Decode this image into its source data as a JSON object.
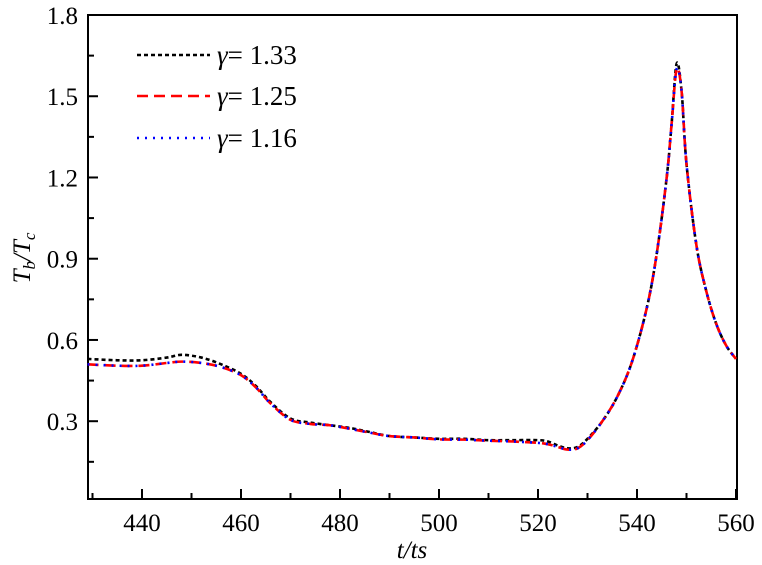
{
  "chart_data": {
    "type": "line",
    "title": "",
    "xlabel": "t/ts",
    "ylabel": "Tb/Tc",
    "ylabel_parts": {
      "main1": "T",
      "sub1": "b",
      "slash": "/",
      "main2": "T",
      "sub2": "c"
    },
    "xlim": [
      429,
      560
    ],
    "ylim": [
      0.0,
      1.8
    ],
    "xticks": [
      440,
      460,
      480,
      500,
      520,
      540,
      560
    ],
    "xtick_labels": [
      "440",
      "460",
      "480",
      "500",
      "520",
      "540",
      "560"
    ],
    "yticks": [
      0.3,
      0.6,
      0.9,
      1.2,
      1.5,
      1.8
    ],
    "ytick_labels": [
      "0.3",
      "0.6",
      "0.9",
      "1.2",
      "1.5",
      "1.8"
    ],
    "grid": false,
    "legend_position": "upper left",
    "series": [
      {
        "name": "γ = 1.33",
        "gamma": "1.33",
        "color": "#000000",
        "dash": "4,3",
        "x": [
          429,
          435,
          440,
          445,
          448,
          452,
          456,
          460,
          463,
          466,
          470,
          474,
          478,
          482,
          486,
          490,
          495,
          500,
          505,
          510,
          515,
          520,
          522,
          524,
          526,
          528,
          530,
          533,
          536,
          539,
          542,
          544,
          546,
          547,
          548,
          549,
          550,
          552,
          554,
          556,
          558,
          560
        ],
        "y": [
          0.53,
          0.525,
          0.525,
          0.535,
          0.545,
          0.535,
          0.51,
          0.475,
          0.43,
          0.37,
          0.31,
          0.295,
          0.285,
          0.275,
          0.26,
          0.245,
          0.24,
          0.235,
          0.235,
          0.23,
          0.23,
          0.23,
          0.225,
          0.21,
          0.2,
          0.205,
          0.235,
          0.3,
          0.39,
          0.52,
          0.72,
          0.92,
          1.2,
          1.4,
          1.62,
          1.52,
          1.25,
          0.95,
          0.78,
          0.66,
          0.58,
          0.53
        ]
      },
      {
        "name": "γ = 1.25",
        "gamma": "1.25",
        "color": "#ff0000",
        "dash": "11,6",
        "x": [
          429,
          435,
          440,
          445,
          448,
          452,
          456,
          460,
          463,
          466,
          470,
          474,
          478,
          482,
          486,
          490,
          495,
          500,
          505,
          510,
          515,
          520,
          522,
          524,
          526,
          528,
          530,
          533,
          536,
          539,
          542,
          544,
          546,
          547,
          548,
          549,
          550,
          552,
          554,
          556,
          558,
          560
        ],
        "y": [
          0.51,
          0.505,
          0.505,
          0.515,
          0.52,
          0.515,
          0.5,
          0.47,
          0.425,
          0.365,
          0.305,
          0.29,
          0.285,
          0.272,
          0.258,
          0.245,
          0.24,
          0.233,
          0.232,
          0.228,
          0.225,
          0.22,
          0.215,
          0.205,
          0.195,
          0.2,
          0.23,
          0.3,
          0.39,
          0.52,
          0.72,
          0.92,
          1.2,
          1.4,
          1.6,
          1.52,
          1.25,
          0.95,
          0.78,
          0.66,
          0.58,
          0.53
        ]
      },
      {
        "name": "γ = 1.16",
        "gamma": "1.16",
        "color": "#0000ff",
        "dash": "2,6",
        "x": [
          429,
          435,
          440,
          445,
          448,
          452,
          456,
          460,
          463,
          466,
          470,
          474,
          478,
          482,
          486,
          490,
          495,
          500,
          505,
          510,
          515,
          520,
          522,
          524,
          526,
          528,
          530,
          533,
          536,
          539,
          542,
          544,
          546,
          547,
          548,
          549,
          550,
          552,
          554,
          556,
          558,
          560
        ],
        "y": [
          0.51,
          0.505,
          0.505,
          0.515,
          0.52,
          0.515,
          0.5,
          0.47,
          0.425,
          0.365,
          0.305,
          0.29,
          0.285,
          0.272,
          0.258,
          0.245,
          0.24,
          0.233,
          0.232,
          0.228,
          0.225,
          0.22,
          0.215,
          0.205,
          0.195,
          0.2,
          0.23,
          0.3,
          0.39,
          0.52,
          0.72,
          0.92,
          1.2,
          1.4,
          1.6,
          1.52,
          1.25,
          0.95,
          0.78,
          0.66,
          0.58,
          0.53
        ]
      }
    ]
  },
  "legend": {
    "items": [
      {
        "symbol": "γ",
        "equals": "= 1.33"
      },
      {
        "symbol": "γ",
        "equals": "= 1.25"
      },
      {
        "symbol": "γ",
        "equals": "= 1.16"
      }
    ]
  }
}
